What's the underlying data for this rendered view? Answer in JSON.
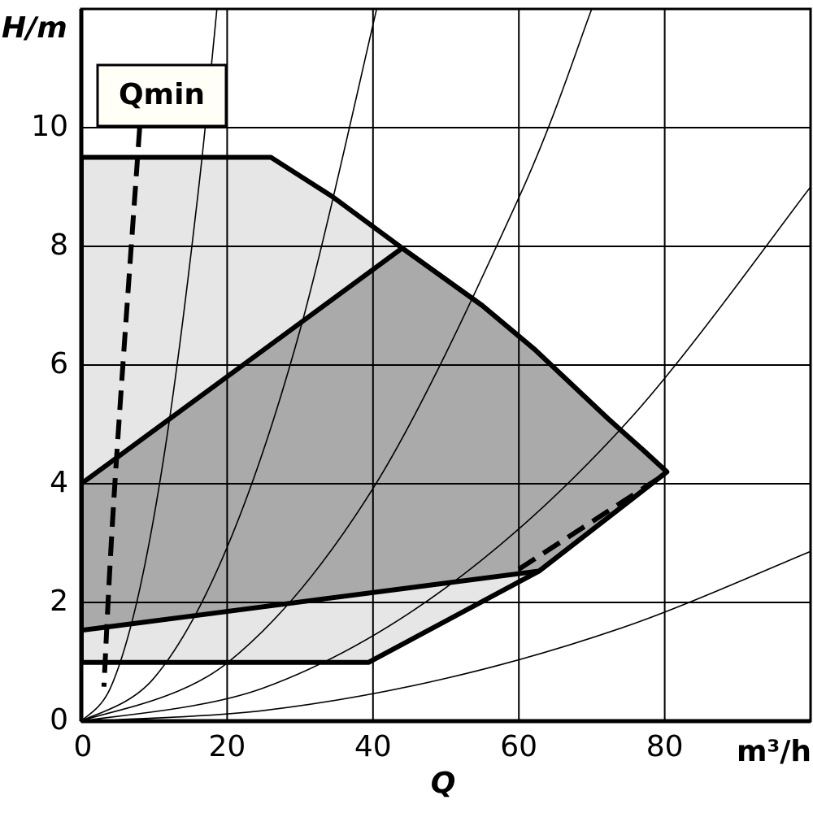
{
  "chart_data": {
    "type": "line",
    "x_label": "Q",
    "x_unit": "m³/h",
    "y_label": "H/m",
    "annotation": "Qmin",
    "xlim": [
      0,
      100
    ],
    "ylim": [
      0,
      12
    ],
    "xticks": [
      0,
      20,
      40,
      60,
      80
    ],
    "yticks": [
      0,
      2,
      4,
      6,
      8,
      10
    ],
    "grid": true,
    "regions": [
      {
        "color": "#e6e6e6",
        "x": [
          0,
          26,
          34.4,
          44,
          55,
          62.2,
          72.2,
          77.2,
          80.3,
          62.8,
          39.4,
          0
        ],
        "y": [
          9.5,
          9.5,
          8.84,
          7.97,
          7.0,
          6.26,
          5.1,
          4.55,
          4.2,
          2.53,
          0.99,
          0.99
        ]
      },
      {
        "color": "#aaaaaa",
        "x": [
          0,
          44,
          55,
          62.2,
          72.2,
          77.2,
          80.3,
          62.8,
          0
        ],
        "y": [
          4,
          7.97,
          7.0,
          6.26,
          5.1,
          4.55,
          4.2,
          2.53,
          1.53
        ]
      }
    ],
    "series": [
      {
        "color": "#000000",
        "x": [
          0,
          4,
          8,
          12,
          16,
          18.6
        ],
        "y": [
          0,
          0.56,
          2.22,
          5.0,
          8.88,
          12
        ]
      },
      {
        "color": "#000000",
        "x": [
          0,
          10,
          20,
          30,
          40.5
        ],
        "y": [
          0,
          0.73,
          2.93,
          6.59,
          12
        ]
      },
      {
        "color": "#000000",
        "x": [
          0,
          20,
          40,
          60,
          70
        ],
        "y": [
          0,
          0.98,
          3.92,
          8.82,
          12
        ]
      },
      {
        "color": "#000000",
        "x": [
          0,
          25,
          50,
          75,
          100
        ],
        "y": [
          0,
          0.56,
          2.25,
          5.06,
          9
        ]
      },
      {
        "color": "#000000",
        "x": [
          0,
          25,
          50,
          75,
          100
        ],
        "y": [
          0,
          0.18,
          0.72,
          1.61,
          2.86
        ]
      }
    ],
    "dashed": [
      {
        "color": "#000000",
        "x": [
          8,
          4.6,
          3.1
        ],
        "y": [
          10,
          4,
          0.58
        ]
      },
      {
        "color": "#000000",
        "x": [
          60,
          78.9
        ],
        "y": [
          2.56,
          4.07
        ]
      }
    ]
  }
}
